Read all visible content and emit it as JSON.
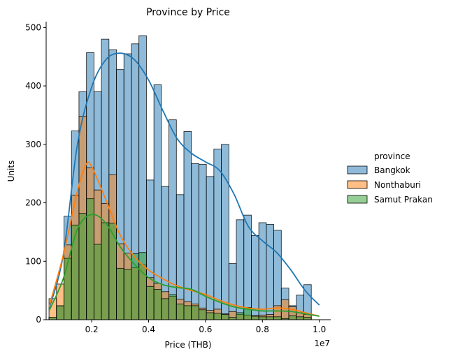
{
  "chart_data": {
    "type": "bar",
    "title": "Province by Price",
    "xlabel": "Price (THB)",
    "ylabel": "Units",
    "x_offset_label": "1e7",
    "xlim": [
      0.04,
      1.04
    ],
    "ylim": [
      0,
      510
    ],
    "x_ticks": [
      0.2,
      0.4,
      0.6,
      0.8,
      1.0
    ],
    "x_tick_labels": [
      "0.2",
      "0.4",
      "0.6",
      "0.8",
      "1.0"
    ],
    "y_ticks": [
      0,
      100,
      200,
      300,
      400,
      500
    ],
    "y_tick_labels": [
      "0",
      "100",
      "200",
      "300",
      "400",
      "500"
    ],
    "grid": false,
    "legend": {
      "title": "province",
      "position": "right"
    },
    "bin_edges": [
      0.05,
      0.0763,
      0.1027,
      0.129,
      0.1553,
      0.1817,
      0.208,
      0.2343,
      0.2607,
      0.287,
      0.3133,
      0.3397,
      0.366,
      0.3923,
      0.4187,
      0.445,
      0.4713,
      0.4977,
      0.524,
      0.5503,
      0.5767,
      0.603,
      0.6293,
      0.6557,
      0.682,
      0.7083,
      0.7347,
      0.761,
      0.7873,
      0.8137,
      0.84,
      0.8663,
      0.8927,
      0.919,
      0.9453,
      0.9717,
      0.998
    ],
    "series": [
      {
        "name": "Bangkok",
        "color": "#1f77b4",
        "values": [
          4,
          22,
          177,
          323,
          390,
          457,
          390,
          480,
          462,
          428,
          455,
          472,
          486,
          239,
          402,
          228,
          342,
          214,
          322,
          267,
          266,
          245,
          292,
          300,
          96,
          171,
          179,
          144,
          166,
          163,
          153,
          54,
          24,
          42,
          60,
          0
        ],
        "kde": [
          [
            0.05,
            18
          ],
          [
            0.1,
            110
          ],
          [
            0.15,
            300
          ],
          [
            0.2,
            398
          ],
          [
            0.25,
            445
          ],
          [
            0.3,
            456
          ],
          [
            0.35,
            445
          ],
          [
            0.4,
            410
          ],
          [
            0.45,
            358
          ],
          [
            0.5,
            310
          ],
          [
            0.55,
            285
          ],
          [
            0.6,
            270
          ],
          [
            0.65,
            255
          ],
          [
            0.7,
            215
          ],
          [
            0.75,
            160
          ],
          [
            0.8,
            135
          ],
          [
            0.85,
            115
          ],
          [
            0.9,
            85
          ],
          [
            0.95,
            50
          ],
          [
            1.0,
            25
          ]
        ]
      },
      {
        "name": "Nonthaburi",
        "color": "#ff7f0e",
        "values": [
          36,
          61,
          128,
          213,
          348,
          260,
          222,
          199,
          248,
          130,
          114,
          89,
          94,
          72,
          62,
          48,
          40,
          35,
          31,
          27,
          20,
          16,
          18,
          10,
          14,
          9,
          8,
          7,
          8,
          9,
          24,
          34,
          22,
          12,
          9,
          0
        ],
        "kde": [
          [
            0.05,
            22
          ],
          [
            0.1,
            110
          ],
          [
            0.15,
            220
          ],
          [
            0.18,
            265
          ],
          [
            0.2,
            262
          ],
          [
            0.25,
            205
          ],
          [
            0.3,
            145
          ],
          [
            0.35,
            108
          ],
          [
            0.4,
            85
          ],
          [
            0.45,
            70
          ],
          [
            0.5,
            58
          ],
          [
            0.55,
            50
          ],
          [
            0.6,
            43
          ],
          [
            0.65,
            33
          ],
          [
            0.7,
            25
          ],
          [
            0.75,
            20
          ],
          [
            0.8,
            18
          ],
          [
            0.85,
            20
          ],
          [
            0.9,
            18
          ],
          [
            0.95,
            12
          ],
          [
            1.0,
            6
          ]
        ]
      },
      {
        "name": "Samut Prakan",
        "color": "#2ca02c",
        "values": [
          4,
          24,
          105,
          162,
          182,
          207,
          129,
          166,
          165,
          88,
          86,
          113,
          115,
          57,
          52,
          36,
          43,
          27,
          24,
          24,
          17,
          12,
          11,
          9,
          4,
          12,
          21,
          6,
          5,
          5,
          5,
          2,
          7,
          5,
          4,
          0
        ],
        "kde": [
          [
            0.05,
            15
          ],
          [
            0.1,
            70
          ],
          [
            0.15,
            155
          ],
          [
            0.2,
            180
          ],
          [
            0.25,
            165
          ],
          [
            0.3,
            125
          ],
          [
            0.35,
            95
          ],
          [
            0.4,
            72
          ],
          [
            0.45,
            60
          ],
          [
            0.5,
            55
          ],
          [
            0.55,
            52
          ],
          [
            0.6,
            40
          ],
          [
            0.65,
            30
          ],
          [
            0.7,
            22
          ],
          [
            0.75,
            18
          ],
          [
            0.8,
            15
          ],
          [
            0.85,
            15
          ],
          [
            0.9,
            14
          ],
          [
            0.95,
            10
          ],
          [
            1.0,
            6
          ]
        ]
      }
    ]
  }
}
